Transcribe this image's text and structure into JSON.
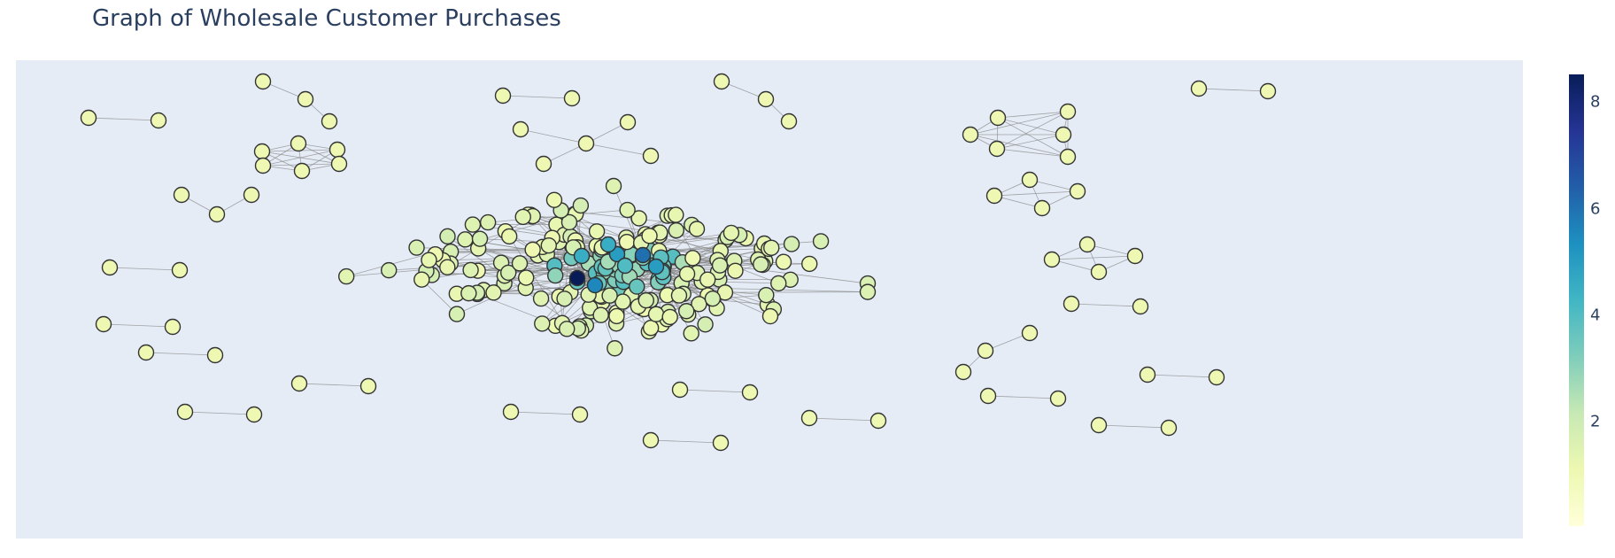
{
  "page": {
    "title": "Graph of Wholesale Customer Purchases"
  },
  "colors": {
    "plot_bg": "#e5ecf6",
    "edge": "#888888",
    "node_outline": "#333333",
    "colorscale": [
      "#ffffd9",
      "#edf8b1",
      "#c7e9b4",
      "#7fcdbb",
      "#41b6c4",
      "#1d91c0",
      "#225ea8",
      "#253494",
      "#081d58"
    ],
    "colorscale_name": "YlGnBu"
  },
  "chart_data": {
    "type": "network",
    "title": "Graph of Wholesale Customer Purchases",
    "node_color_metric": "degree",
    "colorbar": {
      "range": [
        0,
        8.5
      ],
      "ticks": [
        "2",
        "4",
        "6",
        "8"
      ]
    },
    "grid": false,
    "axes_visible": false,
    "components": [
      {
        "kind": "pair",
        "x": [
          100,
          179
        ],
        "y": [
          133,
          136
        ]
      },
      {
        "kind": "pair",
        "x": [
          124,
          203
        ],
        "y": [
          302,
          305
        ]
      },
      {
        "kind": "pair",
        "x": [
          117,
          195
        ],
        "y": [
          366,
          369
        ]
      },
      {
        "kind": "pair",
        "x": [
          165,
          243
        ],
        "y": [
          398,
          401
        ]
      },
      {
        "kind": "pair",
        "x": [
          209,
          287
        ],
        "y": [
          465,
          468
        ]
      },
      {
        "kind": "pair",
        "x": [
          338,
          416
        ],
        "y": [
          433,
          436
        ]
      },
      {
        "kind": "pair",
        "x": [
          568,
          646
        ],
        "y": [
          108,
          111
        ]
      },
      {
        "kind": "pair",
        "x": [
          577,
          655
        ],
        "y": [
          465,
          468
        ]
      },
      {
        "kind": "pair",
        "x": [
          768,
          847
        ],
        "y": [
          440,
          443
        ]
      },
      {
        "kind": "pair",
        "x": [
          735,
          814
        ],
        "y": [
          497,
          500
        ]
      },
      {
        "kind": "pair",
        "x": [
          914,
          992
        ],
        "y": [
          472,
          475
        ]
      },
      {
        "kind": "pair",
        "x": [
          1354,
          1432
        ],
        "y": [
          100,
          103
        ]
      },
      {
        "kind": "pair",
        "x": [
          1210,
          1288
        ],
        "y": [
          343,
          346
        ]
      },
      {
        "kind": "pair",
        "x": [
          1296,
          1374
        ],
        "y": [
          423,
          426
        ]
      },
      {
        "kind": "pair",
        "x": [
          1116,
          1195
        ],
        "y": [
          447,
          450
        ]
      },
      {
        "kind": "pair",
        "x": [
          1241,
          1320
        ],
        "y": [
          480,
          483
        ]
      },
      {
        "kind": "path",
        "x": [
          297,
          345,
          372
        ],
        "y": [
          92,
          112,
          137
        ]
      },
      {
        "kind": "path",
        "x": [
          815,
          865,
          891
        ],
        "y": [
          92,
          112,
          137
        ]
      },
      {
        "kind": "path",
        "x": [
          205,
          245,
          284
        ],
        "y": [
          220,
          242,
          220
        ]
      },
      {
        "kind": "path",
        "x": [
          1088,
          1113,
          1163
        ],
        "y": [
          420,
          396,
          376
        ]
      },
      {
        "kind": "star",
        "x": [
          662,
          588,
          709,
          614,
          735
        ],
        "y": [
          162,
          146,
          138,
          185,
          176
        ]
      },
      {
        "kind": "clique",
        "x": [
          296,
          337,
          381,
          297,
          341,
          383
        ],
        "y": [
          171,
          162,
          169,
          187,
          193,
          185
        ]
      },
      {
        "kind": "clique",
        "x": [
          1127,
          1206,
          1201,
          1126,
          1206,
          1096
        ],
        "y": [
          133,
          126,
          152,
          168,
          177,
          152
        ]
      },
      {
        "kind": "clique",
        "x": [
          1163,
          1217,
          1123,
          1177
        ],
        "y": [
          203,
          216,
          221,
          235
        ]
      },
      {
        "kind": "clique",
        "x": [
          1188,
          1228,
          1282,
          1241
        ],
        "y": [
          293,
          276,
          289,
          307
        ]
      }
    ],
    "central_cluster": {
      "node_count": 220,
      "x_range": [
        340,
        980
      ],
      "y_range": [
        210,
        420
      ],
      "high_degree_nodes": [
        {
          "x": 652,
          "y": 314,
          "degree": 8.5
        },
        {
          "x": 726,
          "y": 288,
          "degree": 6
        },
        {
          "x": 672,
          "y": 322,
          "degree": 5.5
        },
        {
          "x": 697,
          "y": 287,
          "degree": 5
        },
        {
          "x": 741,
          "y": 301,
          "degree": 5
        },
        {
          "x": 657,
          "y": 289,
          "degree": 4.5
        },
        {
          "x": 687,
          "y": 276,
          "degree": 4.5
        },
        {
          "x": 706,
          "y": 300,
          "degree": 4
        }
      ]
    }
  }
}
